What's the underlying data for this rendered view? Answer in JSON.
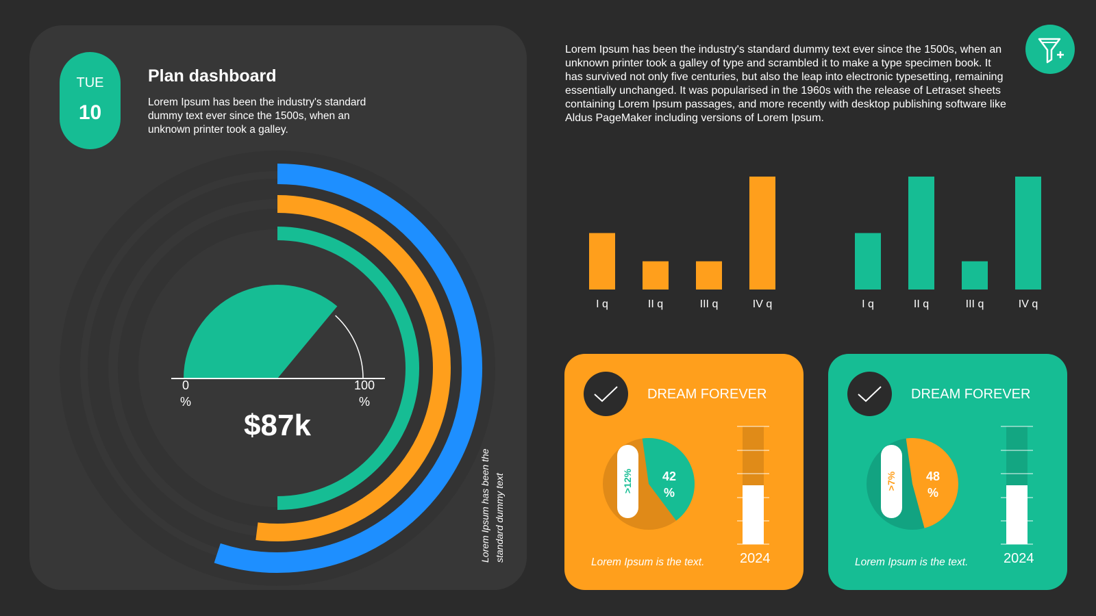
{
  "header": {
    "day": "TUE",
    "date": "10",
    "title": "Plan dashboard",
    "description": "Lorem Ipsum has been the industry's standard dummy text ever since the 1500s, when an unknown printer took a galley."
  },
  "gauge": {
    "min_label": "0",
    "min_unit": "%",
    "max_label": "100",
    "max_unit": "%",
    "value_label": "$87k",
    "fill_fraction": 0.72,
    "vertical_note": [
      "Lorem Ipsum has been the",
      "standard dummy text"
    ]
  },
  "rings": [
    {
      "color": "#1e8fff",
      "fraction": 0.55
    },
    {
      "color": "#ff9f1c",
      "fraction": 0.52
    },
    {
      "color": "#16bd94",
      "fraction": 0.5
    }
  ],
  "top_text": "Lorem Ipsum has been the industry's standard dummy text ever since the 1500s, when an unknown printer took a galley of type and scrambled it to make a type specimen book. It has survived not only five centuries, but also the leap into electronic typesetting, remaining essentially unchanged. It was popularised in the 1960s with the release of Letraset sheets containing Lorem Ipsum passages, and more recently with desktop publishing software like Aldus PageMaker including versions of Lorem Ipsum.",
  "filter_button": {
    "icon": "filter-add-icon"
  },
  "chart_data": [
    {
      "type": "bar",
      "categories": [
        "I q",
        "II q",
        "III q",
        "IV q"
      ],
      "values": [
        2,
        1,
        1,
        4
      ],
      "ylim": [
        0,
        4
      ],
      "color": "#ff9f1c",
      "grid": false
    },
    {
      "type": "bar",
      "categories": [
        "I q",
        "II q",
        "III q",
        "IV q"
      ],
      "values": [
        2,
        4,
        1,
        4
      ],
      "ylim": [
        0,
        4
      ],
      "color": "#16bd94",
      "grid": false
    }
  ],
  "cards": [
    {
      "title": "DREAM FOREVER",
      "pie_label": "42 %",
      "pie_fraction": 0.42,
      "pill_label": ">12%",
      "caption": "Lorem Ipsum is the text.",
      "year": "2024",
      "level": 0.5,
      "bg": "#ff9f1c",
      "slice": "#16bd94",
      "rest": "#e08a18"
    },
    {
      "title": "DREAM FOREVER",
      "pie_label": "48 %",
      "pie_fraction": 0.48,
      "pill_label": ">7%",
      "caption": "Lorem Ipsum is the text.",
      "year": "2024",
      "level": 0.5,
      "bg": "#16bd94",
      "slice": "#ff9f1c",
      "rest": "#12a381"
    }
  ]
}
